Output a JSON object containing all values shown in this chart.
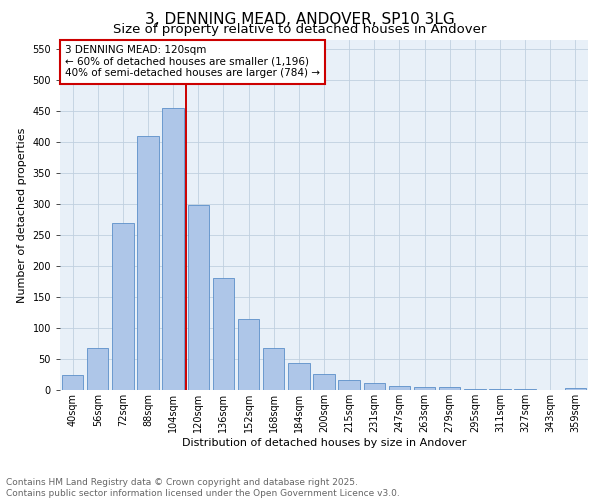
{
  "title": "3, DENNING MEAD, ANDOVER, SP10 3LG",
  "subtitle": "Size of property relative to detached houses in Andover",
  "xlabel": "Distribution of detached houses by size in Andover",
  "ylabel": "Number of detached properties",
  "bar_labels": [
    "40sqm",
    "56sqm",
    "72sqm",
    "88sqm",
    "104sqm",
    "120sqm",
    "136sqm",
    "152sqm",
    "168sqm",
    "184sqm",
    "200sqm",
    "215sqm",
    "231sqm",
    "247sqm",
    "263sqm",
    "279sqm",
    "295sqm",
    "311sqm",
    "327sqm",
    "343sqm",
    "359sqm"
  ],
  "bar_values": [
    25,
    68,
    270,
    410,
    455,
    298,
    180,
    115,
    68,
    44,
    26,
    16,
    12,
    6,
    5,
    5,
    2,
    1,
    1,
    0,
    3
  ],
  "bar_color": "#aec6e8",
  "bar_edge_color": "#5b8fc9",
  "vline_index": 5,
  "vline_color": "#cc0000",
  "annotation_line1": "3 DENNING MEAD: 120sqm",
  "annotation_line2": "← 60% of detached houses are smaller (1,196)",
  "annotation_line3": "40% of semi-detached houses are larger (784) →",
  "annotation_box_color": "#cc0000",
  "ylim": [
    0,
    565
  ],
  "yticks": [
    0,
    50,
    100,
    150,
    200,
    250,
    300,
    350,
    400,
    450,
    500,
    550
  ],
  "grid_color": "#c0d0e0",
  "background_color": "#e8f0f8",
  "footer_line1": "Contains HM Land Registry data © Crown copyright and database right 2025.",
  "footer_line2": "Contains public sector information licensed under the Open Government Licence v3.0.",
  "title_fontsize": 11,
  "subtitle_fontsize": 9.5,
  "axis_label_fontsize": 8,
  "tick_fontsize": 7,
  "annotation_fontsize": 7.5,
  "footer_fontsize": 6.5
}
